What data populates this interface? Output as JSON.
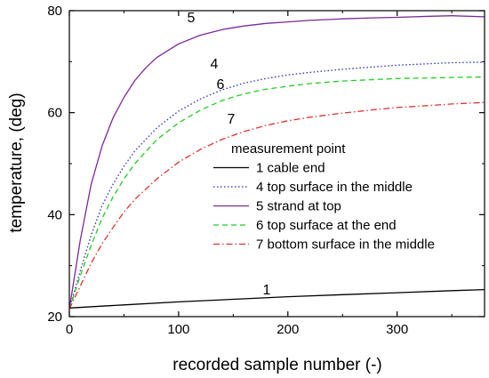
{
  "chart_data": {
    "type": "line",
    "title": "",
    "xlabel": "recorded sample number (-)",
    "ylabel": "temperature, (deg)",
    "xlim": [
      0,
      380
    ],
    "ylim": [
      20,
      80
    ],
    "xticks": [
      0,
      100,
      200,
      300
    ],
    "yticks": [
      20,
      40,
      60,
      80
    ],
    "grid": false,
    "legend": {
      "placement": "center-right",
      "title": "measurement point"
    },
    "series": [
      {
        "name": "1 cable end",
        "curve_label": "1",
        "color": "#000000",
        "dash": "solid",
        "x": [
          0,
          50,
          100,
          150,
          200,
          250,
          300,
          350,
          380
        ],
        "y": [
          21.7,
          22.3,
          22.9,
          23.4,
          23.9,
          24.3,
          24.7,
          25.1,
          25.3
        ]
      },
      {
        "name": "4 top surface in the middle",
        "curve_label": "4",
        "color": "#2b2bb8",
        "dash": "dot",
        "x": [
          0,
          10,
          20,
          30,
          40,
          50,
          60,
          80,
          100,
          120,
          140,
          160,
          180,
          200,
          220,
          250,
          280,
          300,
          330,
          350,
          380
        ],
        "y": [
          21.5,
          29,
          36,
          41.8,
          46,
          49.5,
          52.5,
          57,
          60.3,
          62.7,
          64.5,
          65.8,
          66.7,
          67.4,
          67.9,
          68.5,
          69,
          69.3,
          69.6,
          69.8,
          69.9
        ]
      },
      {
        "name": "5 strand at top",
        "curve_label": "5",
        "color": "#7a2a9a",
        "dash": "solid",
        "x": [
          0,
          10,
          20,
          30,
          40,
          50,
          60,
          70,
          80,
          100,
          120,
          140,
          160,
          180,
          200,
          220,
          250,
          280,
          300,
          330,
          350,
          380
        ],
        "y": [
          21.5,
          35,
          46,
          53.5,
          59,
          63,
          66.3,
          68.8,
          70.8,
          73.5,
          75.2,
          76.3,
          77,
          77.5,
          77.8,
          78.1,
          78.4,
          78.6,
          78.7,
          78.9,
          79,
          78.8
        ]
      },
      {
        "name": "6 top surface at the end",
        "curve_label": "6",
        "color": "#22cc22",
        "dash": "dash",
        "x": [
          0,
          10,
          20,
          30,
          40,
          50,
          60,
          80,
          100,
          120,
          140,
          160,
          180,
          200,
          220,
          250,
          280,
          300,
          330,
          350,
          380
        ],
        "y": [
          21.5,
          28,
          34,
          39.3,
          43.5,
          47,
          50,
          54.7,
          58,
          60.5,
          62.4,
          63.7,
          64.6,
          65.2,
          65.7,
          66.2,
          66.5,
          66.7,
          66.8,
          66.9,
          67
        ]
      },
      {
        "name": "7 bottom surface in the middle",
        "curve_label": "7",
        "color": "#e03030",
        "dash": "dashdot",
        "x": [
          0,
          10,
          20,
          30,
          40,
          50,
          60,
          80,
          100,
          120,
          140,
          160,
          180,
          200,
          220,
          250,
          280,
          300,
          330,
          350,
          380
        ],
        "y": [
          21.5,
          26,
          30.5,
          34.3,
          37.5,
          40.5,
          43,
          47,
          50.3,
          52.8,
          54.8,
          56.3,
          57.5,
          58.4,
          59.1,
          59.9,
          60.6,
          61,
          61.4,
          61.7,
          62
        ]
      }
    ]
  }
}
